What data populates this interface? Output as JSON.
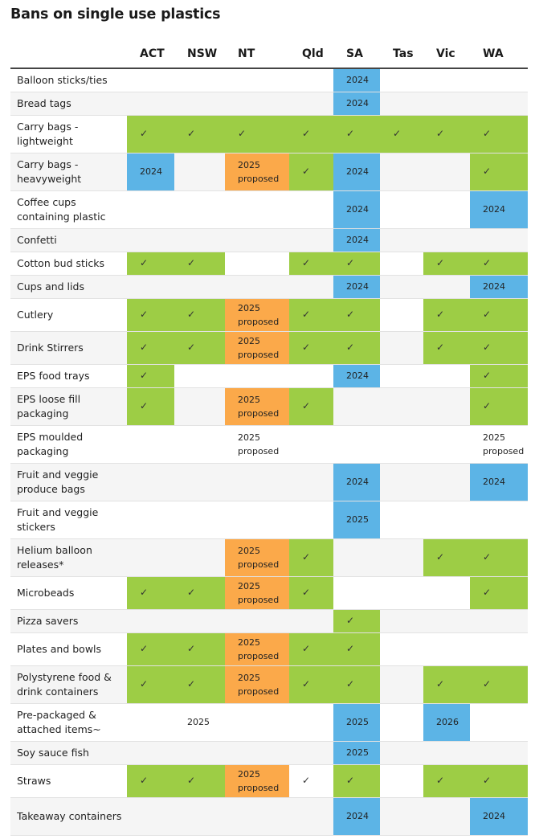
{
  "title": "Bans on single use plastics",
  "columns": [
    "ACT",
    "NSW",
    "NT",
    "Qld",
    "SA",
    "Tas",
    "Vic",
    "WA"
  ],
  "colors": {
    "green": "#9dcd45",
    "blue": "#5cb4e6",
    "orange": "#fba94a"
  },
  "rows": [
    {
      "label": "Balloon sticks/ties",
      "h": 29,
      "cells": [
        [
          "",
          ""
        ],
        [
          "",
          ""
        ],
        [
          "",
          ""
        ],
        [
          "",
          ""
        ],
        [
          "b",
          "2024"
        ],
        [
          "",
          ""
        ],
        [
          "",
          ""
        ],
        [
          "",
          ""
        ]
      ]
    },
    {
      "label": "Bread tags",
      "h": 29,
      "cells": [
        [
          "",
          ""
        ],
        [
          "",
          ""
        ],
        [
          "",
          ""
        ],
        [
          "",
          ""
        ],
        [
          "b",
          "2024"
        ],
        [
          "",
          ""
        ],
        [
          "",
          ""
        ],
        [
          "",
          ""
        ]
      ]
    },
    {
      "label": "Carry bags - lightweight",
      "h": 47,
      "cells": [
        [
          "g",
          "✓"
        ],
        [
          "g",
          "✓"
        ],
        [
          "g",
          "✓"
        ],
        [
          "g",
          "✓"
        ],
        [
          "g",
          "✓"
        ],
        [
          "g",
          "✓"
        ],
        [
          "g",
          "✓"
        ],
        [
          "g",
          "✓"
        ]
      ]
    },
    {
      "label": "Carry bags - heavyweight",
      "h": 47,
      "cells": [
        [
          "b",
          "2024"
        ],
        [
          "",
          ""
        ],
        [
          "o",
          "2025 proposed"
        ],
        [
          "g",
          "✓"
        ],
        [
          "b",
          "2024"
        ],
        [
          "",
          ""
        ],
        [
          "",
          ""
        ],
        [
          "g",
          "✓"
        ]
      ]
    },
    {
      "label": "Coffee cups containing plastic",
      "h": 47,
      "cells": [
        [
          "",
          ""
        ],
        [
          "",
          ""
        ],
        [
          "",
          ""
        ],
        [
          "",
          ""
        ],
        [
          "b",
          "2024"
        ],
        [
          "",
          ""
        ],
        [
          "",
          ""
        ],
        [
          "b",
          "2024"
        ]
      ]
    },
    {
      "label": "Confetti",
      "h": 29,
      "cells": [
        [
          "",
          ""
        ],
        [
          "",
          ""
        ],
        [
          "",
          ""
        ],
        [
          "",
          ""
        ],
        [
          "b",
          "2024"
        ],
        [
          "",
          ""
        ],
        [
          "",
          ""
        ],
        [
          "",
          ""
        ]
      ]
    },
    {
      "label": "Cotton bud sticks",
      "h": 29,
      "cells": [
        [
          "g",
          "✓"
        ],
        [
          "g",
          "✓"
        ],
        [
          "",
          ""
        ],
        [
          "g",
          "✓"
        ],
        [
          "g",
          "✓"
        ],
        [
          "",
          ""
        ],
        [
          "g",
          "✓"
        ],
        [
          "g",
          "✓"
        ]
      ]
    },
    {
      "label": "Cups and lids",
      "h": 29,
      "cells": [
        [
          "",
          ""
        ],
        [
          "",
          ""
        ],
        [
          "",
          ""
        ],
        [
          "",
          ""
        ],
        [
          "b",
          "2024"
        ],
        [
          "",
          ""
        ],
        [
          "",
          ""
        ],
        [
          "b",
          "2024"
        ]
      ]
    },
    {
      "label": "Cutlery",
      "h": 41,
      "cells": [
        [
          "g",
          "✓"
        ],
        [
          "g",
          "✓"
        ],
        [
          "o",
          "2025 proposed"
        ],
        [
          "g",
          "✓"
        ],
        [
          "g",
          "✓"
        ],
        [
          "",
          ""
        ],
        [
          "g",
          "✓"
        ],
        [
          "g",
          "✓"
        ]
      ]
    },
    {
      "label": "Drink Stirrers",
      "h": 41,
      "cells": [
        [
          "g",
          "✓"
        ],
        [
          "g",
          "✓"
        ],
        [
          "o",
          "2025 proposed"
        ],
        [
          "g",
          "✓"
        ],
        [
          "g",
          "✓"
        ],
        [
          "",
          ""
        ],
        [
          "g",
          "✓"
        ],
        [
          "g",
          "✓"
        ]
      ]
    },
    {
      "label": "EPS food trays",
      "h": 29,
      "cells": [
        [
          "g",
          "✓"
        ],
        [
          "",
          ""
        ],
        [
          "",
          ""
        ],
        [
          "",
          ""
        ],
        [
          "b",
          "2024"
        ],
        [
          "",
          ""
        ],
        [
          "",
          ""
        ],
        [
          "g",
          "✓"
        ]
      ]
    },
    {
      "label": "EPS loose fill packaging",
      "h": 47,
      "cells": [
        [
          "g",
          "✓"
        ],
        [
          "",
          ""
        ],
        [
          "o",
          "2025 proposed"
        ],
        [
          "g",
          "✓"
        ],
        [
          "",
          ""
        ],
        [
          "",
          ""
        ],
        [
          "",
          ""
        ],
        [
          "g",
          "✓"
        ]
      ]
    },
    {
      "label": "EPS moulded packaging",
      "h": 47,
      "cells": [
        [
          "",
          ""
        ],
        [
          "",
          ""
        ],
        [
          "",
          "2025 proposed"
        ],
        [
          "",
          ""
        ],
        [
          "",
          ""
        ],
        [
          "",
          ""
        ],
        [
          "",
          ""
        ],
        [
          "",
          "2025 proposed"
        ]
      ]
    },
    {
      "label": "Fruit and veggie produce bags",
      "h": 47,
      "cells": [
        [
          "",
          ""
        ],
        [
          "",
          ""
        ],
        [
          "",
          ""
        ],
        [
          "",
          ""
        ],
        [
          "b",
          "2024"
        ],
        [
          "",
          ""
        ],
        [
          "",
          ""
        ],
        [
          "b",
          "2024"
        ]
      ]
    },
    {
      "label": "Fruit and veggie stickers",
      "h": 47,
      "cells": [
        [
          "",
          ""
        ],
        [
          "",
          ""
        ],
        [
          "",
          ""
        ],
        [
          "",
          ""
        ],
        [
          "b",
          "2025"
        ],
        [
          "",
          ""
        ],
        [
          "",
          ""
        ],
        [
          "",
          ""
        ]
      ]
    },
    {
      "label": "Helium balloon releases*",
      "h": 47,
      "cells": [
        [
          "",
          ""
        ],
        [
          "",
          ""
        ],
        [
          "o",
          "2025 proposed"
        ],
        [
          "g",
          "✓"
        ],
        [
          "",
          ""
        ],
        [
          "",
          ""
        ],
        [
          "g",
          "✓"
        ],
        [
          "g",
          "✓"
        ]
      ]
    },
    {
      "label": "Microbeads",
      "h": 41,
      "cells": [
        [
          "g",
          "✓"
        ],
        [
          "g",
          "✓"
        ],
        [
          "o",
          "2025 proposed"
        ],
        [
          "g",
          "✓"
        ],
        [
          "",
          ""
        ],
        [
          "",
          ""
        ],
        [
          "",
          ""
        ],
        [
          "g",
          "✓"
        ]
      ]
    },
    {
      "label": "Pizza savers",
      "h": 29,
      "cells": [
        [
          "",
          ""
        ],
        [
          "",
          ""
        ],
        [
          "",
          ""
        ],
        [
          "",
          ""
        ],
        [
          "g",
          "✓"
        ],
        [
          "",
          ""
        ],
        [
          "",
          ""
        ],
        [
          "",
          ""
        ]
      ]
    },
    {
      "label": "Plates and bowls",
      "h": 41,
      "cells": [
        [
          "g",
          "✓"
        ],
        [
          "g",
          "✓"
        ],
        [
          "o",
          "2025 proposed"
        ],
        [
          "g",
          "✓"
        ],
        [
          "g",
          "✓"
        ],
        [
          "",
          ""
        ],
        [
          "",
          ""
        ],
        [
          "",
          ""
        ]
      ]
    },
    {
      "label": "Polystyrene food & drink containers",
      "h": 47,
      "cells": [
        [
          "g",
          "✓"
        ],
        [
          "g",
          "✓"
        ],
        [
          "o",
          "2025 proposed"
        ],
        [
          "g",
          "✓"
        ],
        [
          "g",
          "✓"
        ],
        [
          "",
          ""
        ],
        [
          "g",
          "✓"
        ],
        [
          "g",
          "✓"
        ]
      ]
    },
    {
      "label": "Pre-packaged & attached items~",
      "h": 47,
      "cells": [
        [
          "",
          ""
        ],
        [
          "",
          "2025"
        ],
        [
          "",
          ""
        ],
        [
          "",
          ""
        ],
        [
          "b",
          "2025"
        ],
        [
          "",
          ""
        ],
        [
          "b",
          "2026"
        ],
        [
          "",
          ""
        ]
      ]
    },
    {
      "label": "Soy sauce fish",
      "h": 29,
      "cells": [
        [
          "",
          ""
        ],
        [
          "",
          ""
        ],
        [
          "",
          ""
        ],
        [
          "",
          ""
        ],
        [
          "b",
          "2025"
        ],
        [
          "",
          ""
        ],
        [
          "",
          ""
        ],
        [
          "",
          ""
        ]
      ]
    },
    {
      "label": "Straws",
      "h": 41,
      "cells": [
        [
          "g",
          "✓"
        ],
        [
          "g",
          "✓"
        ],
        [
          "o",
          "2025 proposed"
        ],
        [
          "",
          "✓"
        ],
        [
          "g",
          "✓"
        ],
        [
          "",
          ""
        ],
        [
          "g",
          "✓"
        ],
        [
          "g",
          "✓"
        ]
      ]
    },
    {
      "label": "Takeaway containers",
      "h": 47,
      "cells": [
        [
          "",
          ""
        ],
        [
          "",
          ""
        ],
        [
          "",
          ""
        ],
        [
          "",
          ""
        ],
        [
          "b",
          "2024"
        ],
        [
          "",
          ""
        ],
        [
          "",
          ""
        ],
        [
          "b",
          "2024"
        ]
      ]
    }
  ]
}
